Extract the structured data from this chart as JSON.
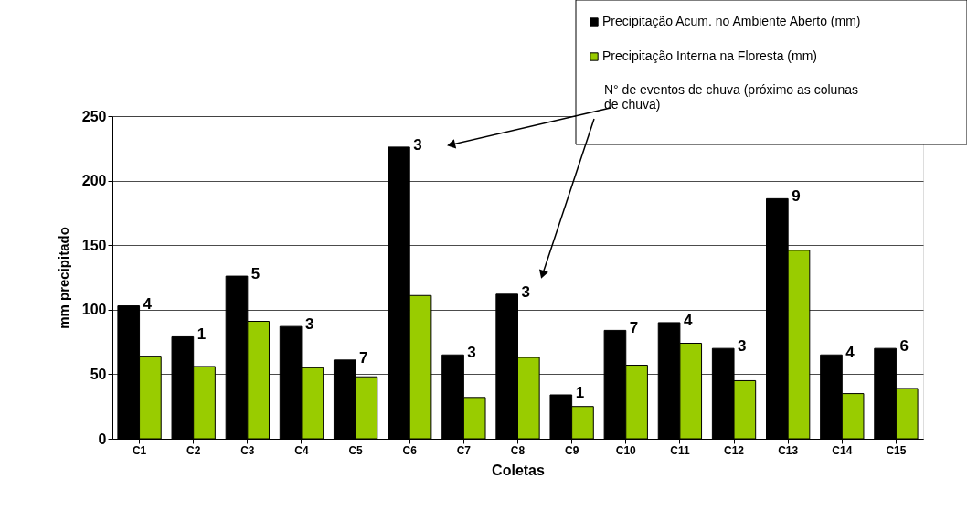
{
  "chart_data": {
    "type": "bar",
    "xlabel": "Coletas",
    "ylabel": "mm precipitado",
    "categories": [
      "C1",
      "C2",
      "C3",
      "C4",
      "C5",
      "C6",
      "C7",
      "C8",
      "C9",
      "C10",
      "C11",
      "C12",
      "C13",
      "C14",
      "C15"
    ],
    "series": [
      {
        "name": "Precipitação Acum. no Ambiente Aberto (mm)",
        "color": "#000000",
        "values": [
          103,
          79,
          126,
          87,
          61,
          226,
          65,
          112,
          34,
          84,
          90,
          70,
          186,
          65,
          70
        ]
      },
      {
        "name": "Precipitação Interna na Floresta (mm)",
        "color": "#99cc00",
        "values": [
          64,
          56,
          91,
          55,
          48,
          111,
          32,
          63,
          25,
          57,
          74,
          45,
          146,
          35,
          39
        ]
      }
    ],
    "ylim": [
      0,
      250
    ],
    "yticks": [
      0,
      50,
      100,
      150,
      200,
      250
    ],
    "grid": "y",
    "legend": "top right",
    "annotations": [
      "N° de eventos de chuva (próximo as colunas de chuva)",
      {
        "text": "4",
        "x": "C1",
        "y": 103
      },
      {
        "text": "1",
        "x": "C2",
        "y": 79
      },
      {
        "text": "5",
        "x": "C3",
        "y": 126
      },
      {
        "text": "3",
        "x": "C4",
        "y": 87
      },
      {
        "text": "7",
        "x": "C5",
        "y": 61
      },
      {
        "text": "3",
        "x": "C6",
        "y": 226
      },
      {
        "text": "3",
        "x": "C7",
        "y": 65
      },
      {
        "text": "3",
        "x": "C8",
        "y": 112
      },
      {
        "text": "1",
        "x": "C9",
        "y": 34
      },
      {
        "text": "7",
        "x": "C10",
        "y": 84
      },
      {
        "text": "4",
        "x": "C11",
        "y": 90
      },
      {
        "text": "3",
        "x": "C12",
        "y": 70
      },
      {
        "text": "9",
        "x": "C13",
        "y": 186
      },
      {
        "text": "4",
        "x": "C14",
        "y": 65
      },
      {
        "text": "6",
        "x": "C15",
        "y": 70
      }
    ]
  }
}
